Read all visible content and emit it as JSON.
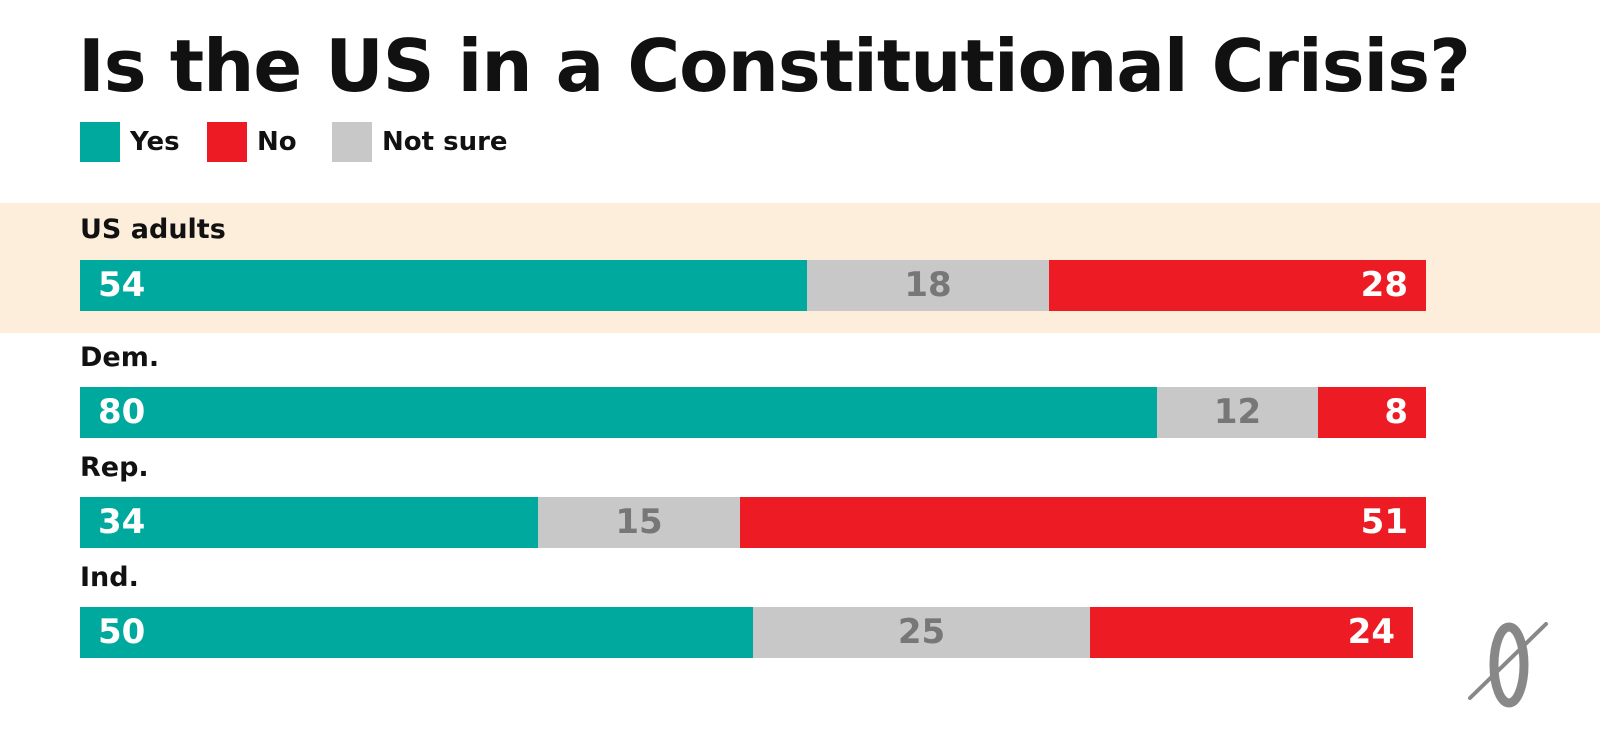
{
  "colors": {
    "yes": "#00A99D",
    "no": "#ED1C24",
    "not_sure": "#C8C8C8",
    "highlight_band": "#FDEEDC",
    "label_on_dark": "#FFFFFF",
    "label_on_gray": "#777777"
  },
  "chart_data": {
    "type": "bar",
    "orientation": "horizontal",
    "stacked": true,
    "title": "Is the US in a Constitutional Crisis?",
    "legend": [
      {
        "key": "yes",
        "label": "Yes"
      },
      {
        "key": "no",
        "label": "No"
      },
      {
        "key": "not_sure",
        "label": "Not sure"
      }
    ],
    "legend_position": "top-left",
    "categories": [
      "US adults",
      "Dem.",
      "Rep.",
      "Ind."
    ],
    "stack_order": [
      "yes",
      "not_sure",
      "no"
    ],
    "series": [
      {
        "key": "yes",
        "name": "Yes",
        "values": [
          54,
          80,
          34,
          50
        ]
      },
      {
        "key": "not_sure",
        "name": "Not sure",
        "values": [
          18,
          12,
          15,
          25
        ]
      },
      {
        "key": "no",
        "name": "No",
        "values": [
          28,
          8,
          51,
          24
        ]
      }
    ],
    "xlim": [
      0,
      100
    ],
    "grid": false,
    "highlighted_category": "US adults"
  },
  "logo": {
    "name": "publisher-logo"
  }
}
